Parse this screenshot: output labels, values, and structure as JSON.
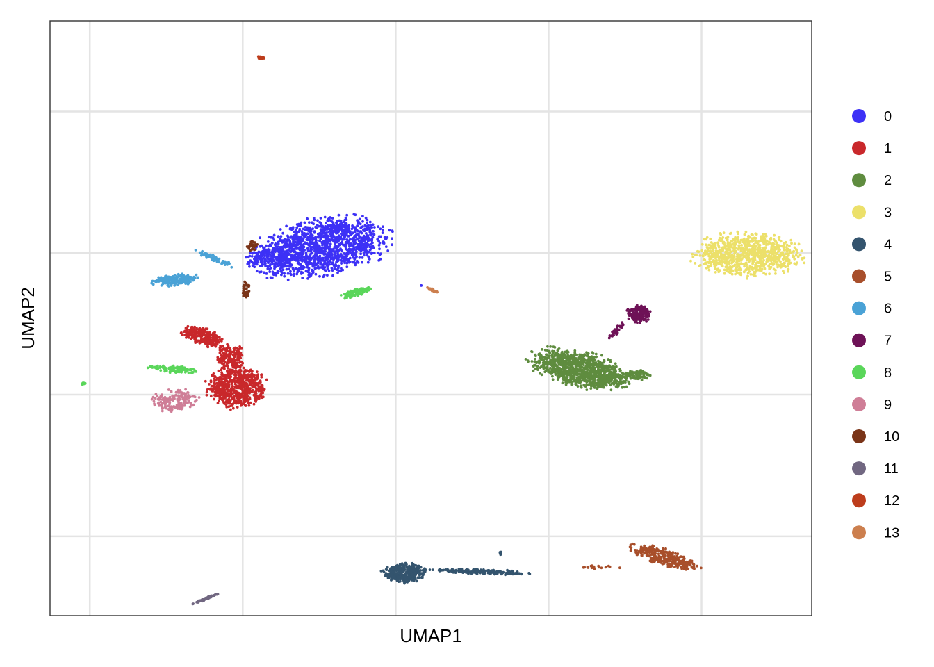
{
  "chart_data": {
    "type": "scatter",
    "title": "",
    "xlabel": "UMAP1",
    "ylabel": "UMAP2",
    "xlim": [
      -12.3,
      12.6
    ],
    "ylim": [
      -10.8,
      10.2
    ],
    "x_gridlines": [
      -11,
      -6,
      -1,
      4,
      9
    ],
    "y_gridlines": [
      -8,
      -3,
      2,
      7
    ],
    "tick_labels_shown": false,
    "grid": true,
    "legend": {
      "position": "right",
      "entries": [
        "0",
        "1",
        "2",
        "3",
        "4",
        "5",
        "6",
        "7",
        "8",
        "9",
        "10",
        "11",
        "12",
        "13"
      ],
      "colors": [
        "#3d31f6",
        "#c9282b",
        "#5f8c3f",
        "#ece06a",
        "#34546e",
        "#a84f2b",
        "#4aa2d6",
        "#6e1257",
        "#5ad65a",
        "#cf7e97",
        "#7a3418",
        "#716781",
        "#bd3d1c",
        "#cc7f4e"
      ]
    },
    "series": [
      {
        "name": "0",
        "color": "#3d31f6",
        "clusters": [
          {
            "cx": -3.4,
            "cy": 2.2,
            "rx": 2.6,
            "ry": 1.15,
            "n": 1400,
            "angle": 12
          },
          {
            "cx": -5.1,
            "cy": 1.85,
            "rx": 0.9,
            "ry": 0.45,
            "n": 160,
            "angle": 10
          },
          {
            "cx": -0.15,
            "cy": 0.85,
            "rx": 0.05,
            "ry": 0.05,
            "n": 2,
            "angle": 0
          }
        ]
      },
      {
        "name": "1",
        "color": "#c9282b",
        "clusters": [
          {
            "cx": -6.2,
            "cy": -2.75,
            "rx": 1.1,
            "ry": 0.8,
            "n": 650,
            "angle": 0
          },
          {
            "cx": -7.3,
            "cy": -0.95,
            "rx": 0.85,
            "ry": 0.35,
            "n": 260,
            "angle": -20
          },
          {
            "cx": -6.4,
            "cy": -1.7,
            "rx": 0.5,
            "ry": 0.55,
            "n": 180,
            "angle": 0
          }
        ]
      },
      {
        "name": "2",
        "color": "#5f8c3f",
        "clusters": [
          {
            "cx": 5.0,
            "cy": -2.1,
            "rx": 1.9,
            "ry": 0.7,
            "n": 1050,
            "angle": -14
          },
          {
            "cx": 6.9,
            "cy": -2.3,
            "rx": 0.5,
            "ry": 0.2,
            "n": 90,
            "angle": 0
          }
        ]
      },
      {
        "name": "3",
        "color": "#ece06a",
        "clusters": [
          {
            "cx": 10.5,
            "cy": 1.95,
            "rx": 2.0,
            "ry": 0.9,
            "n": 900,
            "angle": 0
          }
        ]
      },
      {
        "name": "4",
        "color": "#34546e",
        "clusters": [
          {
            "cx": -0.7,
            "cy": -9.3,
            "rx": 0.85,
            "ry": 0.38,
            "n": 380,
            "angle": 0
          },
          {
            "cx": 1.8,
            "cy": -9.25,
            "rx": 1.8,
            "ry": 0.1,
            "n": 180,
            "angle": -2
          },
          {
            "cx": 2.4,
            "cy": -8.6,
            "rx": 0.08,
            "ry": 0.08,
            "n": 6,
            "angle": 0
          }
        ]
      },
      {
        "name": "5",
        "color": "#a84f2b",
        "clusters": [
          {
            "cx": 7.8,
            "cy": -8.75,
            "rx": 1.3,
            "ry": 0.35,
            "n": 320,
            "angle": -18
          },
          {
            "cx": 5.6,
            "cy": -9.1,
            "rx": 0.8,
            "ry": 0.08,
            "n": 18,
            "angle": 0
          }
        ]
      },
      {
        "name": "6",
        "color": "#4aa2d6",
        "clusters": [
          {
            "cx": -8.2,
            "cy": 1.05,
            "rx": 0.85,
            "ry": 0.22,
            "n": 230,
            "angle": 5
          },
          {
            "cx": -6.9,
            "cy": 1.8,
            "rx": 0.8,
            "ry": 0.12,
            "n": 60,
            "angle": -25
          }
        ]
      },
      {
        "name": "7",
        "color": "#6e1257",
        "clusters": [
          {
            "cx": 6.95,
            "cy": -0.15,
            "rx": 0.45,
            "ry": 0.35,
            "n": 170,
            "angle": 0
          },
          {
            "cx": 6.2,
            "cy": -0.75,
            "rx": 0.5,
            "ry": 0.1,
            "n": 40,
            "angle": 50
          }
        ]
      },
      {
        "name": "8",
        "color": "#5ad65a",
        "clusters": [
          {
            "cx": -2.3,
            "cy": 0.6,
            "rx": 0.55,
            "ry": 0.16,
            "n": 110,
            "angle": 18
          },
          {
            "cx": -8.3,
            "cy": -2.1,
            "rx": 0.9,
            "ry": 0.14,
            "n": 110,
            "angle": -5
          },
          {
            "cx": -11.2,
            "cy": -2.6,
            "rx": 0.1,
            "ry": 0.05,
            "n": 10,
            "angle": 0
          }
        ]
      },
      {
        "name": "9",
        "color": "#cf7e97",
        "clusters": [
          {
            "cx": -8.2,
            "cy": -3.2,
            "rx": 0.85,
            "ry": 0.45,
            "n": 180,
            "angle": 0
          }
        ]
      },
      {
        "name": "10",
        "color": "#7a3418",
        "clusters": [
          {
            "cx": -5.7,
            "cy": 2.25,
            "rx": 0.2,
            "ry": 0.2,
            "n": 35,
            "angle": 0
          },
          {
            "cx": -5.9,
            "cy": 0.7,
            "rx": 0.14,
            "ry": 0.35,
            "n": 40,
            "angle": 0
          }
        ]
      },
      {
        "name": "11",
        "color": "#716781",
        "clusters": [
          {
            "cx": -7.2,
            "cy": -10.2,
            "rx": 0.5,
            "ry": 0.04,
            "n": 60,
            "angle": 23
          }
        ]
      },
      {
        "name": "12",
        "color": "#bd3d1c",
        "clusters": [
          {
            "cx": -5.4,
            "cy": 8.9,
            "rx": 0.14,
            "ry": 0.07,
            "n": 30,
            "angle": 0
          }
        ]
      },
      {
        "name": "13",
        "color": "#cc7f4e",
        "clusters": [
          {
            "cx": 0.2,
            "cy": 0.7,
            "rx": 0.22,
            "ry": 0.05,
            "n": 25,
            "angle": -25
          }
        ]
      }
    ]
  }
}
